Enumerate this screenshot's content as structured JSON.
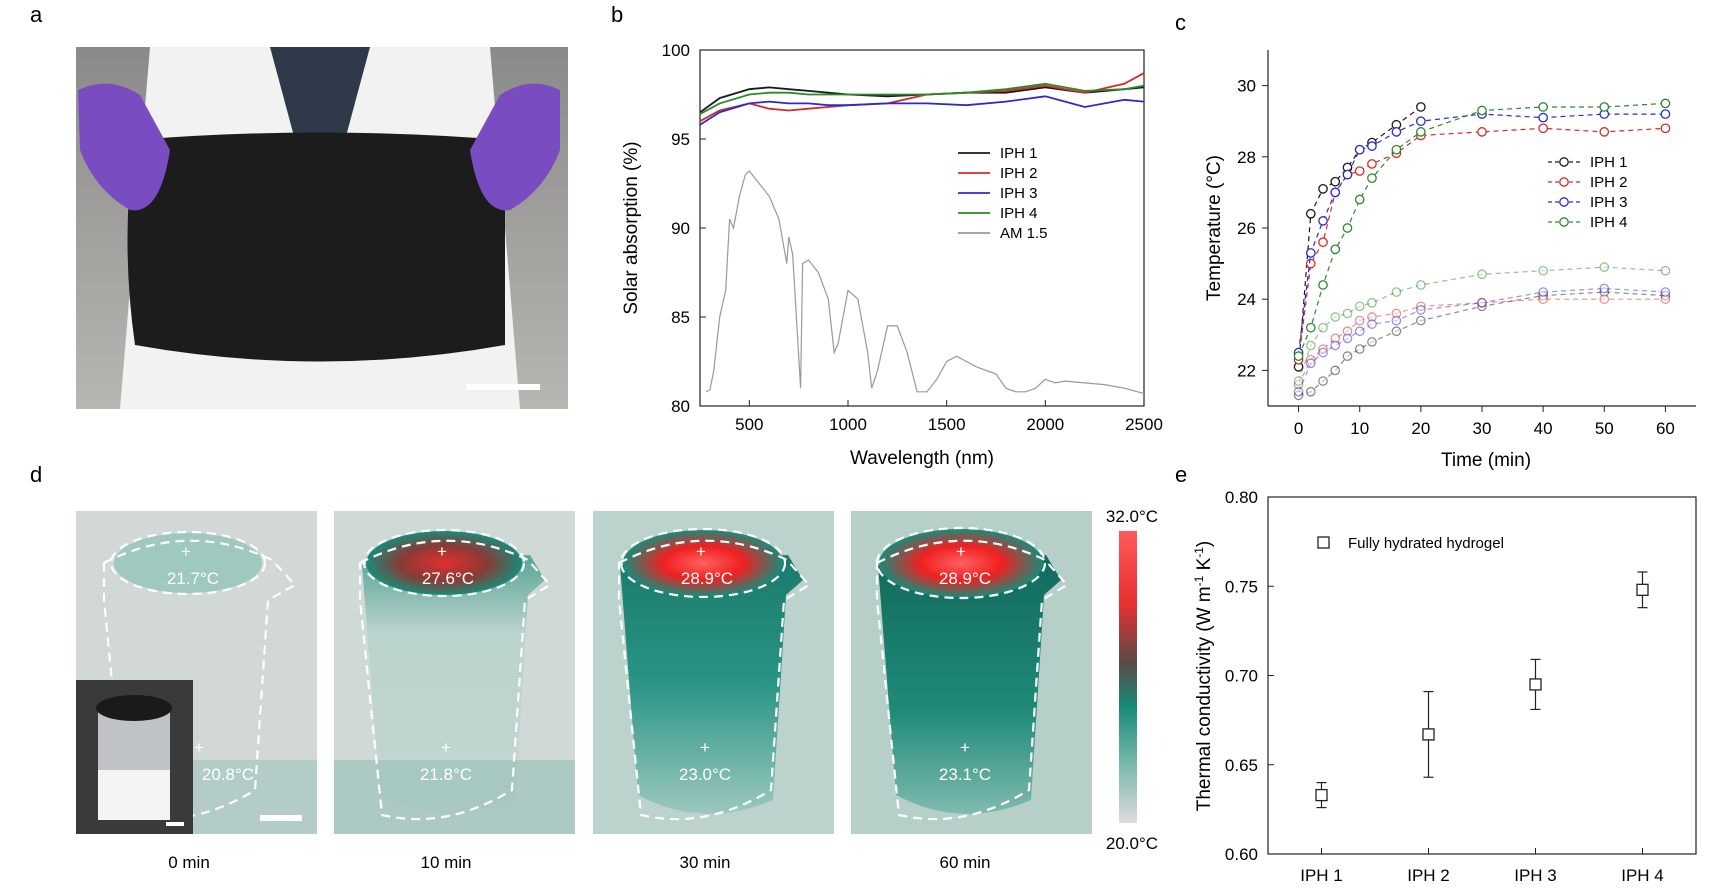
{
  "panels": {
    "a": {
      "label": "a"
    },
    "b": {
      "label": "b"
    },
    "c": {
      "label": "c"
    },
    "d": {
      "label": "d"
    },
    "e": {
      "label": "e"
    }
  },
  "colors": {
    "iph1": "#1a1a1a",
    "iph2": "#d62a2a",
    "iph3": "#2a2ad0",
    "iph4": "#2a8a2a",
    "am15": "#999999",
    "thermal_bg": "#c9d6d2",
    "teal": "#1a8a78",
    "hot": "#f02020"
  },
  "thermal": {
    "frames": [
      {
        "time": "0 min",
        "top_temp": "21.7°C",
        "bottom_temp": "20.8°C"
      },
      {
        "time": "10 min",
        "top_temp": "27.6°C",
        "bottom_temp": "21.8°C"
      },
      {
        "time": "30 min",
        "top_temp": "28.9°C",
        "bottom_temp": "23.0°C"
      },
      {
        "time": "60 min",
        "top_temp": "28.9°C",
        "bottom_temp": "23.1°C"
      }
    ],
    "colorbar_max": "32.0°C",
    "colorbar_min": "20.0°C"
  },
  "chart_data": [
    {
      "panel": "b",
      "type": "line",
      "xlabel": "Wavelength (nm)",
      "ylabel": "Solar absorption (%)",
      "xlim": [
        250,
        2500
      ],
      "ylim": [
        80,
        100
      ],
      "xticks": [
        500,
        1000,
        1500,
        2000,
        2500
      ],
      "yticks": [
        80,
        85,
        90,
        95,
        100
      ],
      "legend": [
        "IPH 1",
        "IPH 2",
        "IPH 3",
        "IPH 4",
        "AM 1.5"
      ],
      "series": [
        {
          "name": "IPH 1",
          "x": [
            250,
            350,
            500,
            600,
            700,
            800,
            900,
            1000,
            1200,
            1400,
            1600,
            1800,
            2000,
            2200,
            2400,
            2500
          ],
          "y": [
            96.5,
            97.3,
            97.8,
            97.9,
            97.8,
            97.7,
            97.6,
            97.5,
            97.4,
            97.5,
            97.6,
            97.6,
            97.9,
            97.6,
            97.8,
            97.9
          ]
        },
        {
          "name": "IPH 2",
          "x": [
            250,
            350,
            500,
            600,
            700,
            800,
            900,
            1000,
            1200,
            1400,
            1600,
            1800,
            2000,
            2200,
            2400,
            2500
          ],
          "y": [
            96.0,
            96.6,
            97.0,
            96.7,
            96.6,
            96.7,
            96.8,
            96.9,
            97.0,
            97.5,
            97.6,
            97.7,
            98.0,
            97.6,
            98.1,
            98.7
          ]
        },
        {
          "name": "IPH 3",
          "x": [
            250,
            350,
            500,
            600,
            700,
            800,
            900,
            1000,
            1200,
            1400,
            1600,
            1800,
            2000,
            2200,
            2400,
            2500
          ],
          "y": [
            95.8,
            96.5,
            97.0,
            97.1,
            97.0,
            97.0,
            96.9,
            96.9,
            97.0,
            97.0,
            96.9,
            97.1,
            97.4,
            96.8,
            97.2,
            97.1
          ]
        },
        {
          "name": "IPH 4",
          "x": [
            250,
            350,
            500,
            600,
            700,
            800,
            900,
            1000,
            1200,
            1400,
            1600,
            1800,
            2000,
            2200,
            2400,
            2500
          ],
          "y": [
            96.4,
            97.0,
            97.5,
            97.6,
            97.6,
            97.5,
            97.5,
            97.5,
            97.5,
            97.5,
            97.6,
            97.8,
            98.1,
            97.7,
            97.8,
            98.0
          ]
        },
        {
          "name": "AM 1.5",
          "x": [
            280,
            300,
            320,
            350,
            380,
            400,
            420,
            450,
            480,
            500,
            550,
            600,
            650,
            690,
            700,
            720,
            760,
            770,
            800,
            850,
            900,
            930,
            950,
            1000,
            1050,
            1100,
            1120,
            1150,
            1200,
            1250,
            1300,
            1350,
            1380,
            1400,
            1450,
            1500,
            1550,
            1600,
            1650,
            1700,
            1750,
            1800,
            1850,
            1900,
            1950,
            2000,
            2050,
            2100,
            2200,
            2300,
            2400,
            2500
          ],
          "y": [
            80.8,
            80.9,
            82.0,
            85.0,
            86.5,
            90.5,
            90.0,
            91.8,
            93.0,
            93.2,
            92.5,
            91.8,
            90.5,
            88.0,
            89.5,
            88.5,
            81.0,
            88.0,
            88.2,
            87.5,
            86.0,
            83.0,
            83.5,
            86.5,
            86.0,
            83.0,
            81.0,
            82.0,
            84.5,
            84.5,
            83.0,
            80.8,
            80.8,
            80.8,
            81.5,
            82.5,
            82.8,
            82.5,
            82.2,
            82.0,
            81.8,
            81.0,
            80.8,
            80.8,
            81.0,
            81.5,
            81.3,
            81.4,
            81.3,
            81.2,
            81.0,
            80.7
          ]
        }
      ]
    },
    {
      "panel": "c",
      "type": "line",
      "xlabel": "Time (min)",
      "ylabel": "Temperature (°C)",
      "xlim": [
        -5,
        65
      ],
      "ylim": [
        21,
        31
      ],
      "xticks": [
        0,
        10,
        20,
        30,
        40,
        50,
        60
      ],
      "yticks": [
        22,
        24,
        26,
        28,
        30
      ],
      "legend": [
        "IPH 1",
        "IPH 2",
        "IPH 3",
        "IPH 4"
      ],
      "series": [
        {
          "name": "IPH 1",
          "x": [
            0,
            2,
            4,
            6,
            8,
            10,
            12,
            16,
            20
          ],
          "y": [
            22.1,
            26.4,
            27.1,
            27.3,
            27.7,
            28.2,
            28.4,
            28.9,
            29.4
          ]
        },
        {
          "name": "IPH 2",
          "x": [
            0,
            2,
            4,
            6,
            8,
            10,
            12,
            16,
            20,
            30,
            40,
            50,
            60
          ],
          "y": [
            22.3,
            25.0,
            25.6,
            27.0,
            27.5,
            27.6,
            27.8,
            28.1,
            28.6,
            28.7,
            28.8,
            28.7,
            28.8
          ]
        },
        {
          "name": "IPH 3",
          "x": [
            0,
            2,
            4,
            6,
            8,
            10,
            12,
            16,
            20,
            30,
            40,
            50,
            60
          ],
          "y": [
            22.5,
            25.3,
            26.2,
            27.0,
            27.5,
            28.2,
            28.3,
            28.7,
            29.0,
            29.2,
            29.1,
            29.2,
            29.2
          ]
        },
        {
          "name": "IPH 4",
          "x": [
            0,
            2,
            4,
            6,
            8,
            10,
            12,
            16,
            20,
            30,
            40,
            50,
            60
          ],
          "y": [
            22.4,
            23.2,
            24.4,
            25.4,
            26.0,
            26.8,
            27.4,
            28.2,
            28.7,
            29.3,
            29.4,
            29.4,
            29.5
          ]
        },
        {
          "name": "IPH 1 (lower)",
          "x": [
            0,
            2,
            4,
            6,
            8,
            10,
            12,
            16,
            20,
            30,
            40,
            50,
            60
          ],
          "y": [
            21.3,
            21.4,
            21.7,
            22.0,
            22.4,
            22.6,
            22.8,
            23.1,
            23.4,
            23.8,
            24.1,
            24.2,
            24.1
          ]
        },
        {
          "name": "IPH 2 (lower)",
          "x": [
            0,
            2,
            4,
            6,
            8,
            10,
            12,
            16,
            20,
            30,
            40,
            50,
            60
          ],
          "y": [
            21.6,
            22.3,
            22.6,
            22.9,
            23.1,
            23.4,
            23.5,
            23.6,
            23.8,
            23.9,
            24.0,
            24.0,
            24.0
          ]
        },
        {
          "name": "IPH 3 (lower)",
          "x": [
            0,
            2,
            4,
            6,
            8,
            10,
            12,
            16,
            20,
            30,
            40,
            50,
            60
          ],
          "y": [
            21.4,
            22.2,
            22.5,
            22.7,
            22.9,
            23.1,
            23.3,
            23.4,
            23.7,
            23.9,
            24.2,
            24.3,
            24.2
          ]
        },
        {
          "name": "IPH 4 (lower)",
          "x": [
            0,
            2,
            4,
            6,
            8,
            10,
            12,
            16,
            20,
            30,
            40,
            50,
            60
          ],
          "y": [
            21.7,
            22.7,
            23.2,
            23.5,
            23.6,
            23.8,
            23.9,
            24.2,
            24.4,
            24.7,
            24.8,
            24.9,
            24.8
          ]
        }
      ]
    },
    {
      "panel": "e",
      "type": "scatter",
      "xlabel": "",
      "ylabel": "Thermal conductivity (W m-1 K-1)",
      "ylabel_parts": {
        "base": "Thermal conductivity (W m",
        "sup1": "-1",
        "mid": " K",
        "sup2": "-1",
        "end": ")"
      },
      "categories": [
        "IPH 1",
        "IPH 2",
        "IPH 3",
        "IPH 4"
      ],
      "values": [
        0.633,
        0.667,
        0.695,
        0.748
      ],
      "errors": [
        0.007,
        0.024,
        0.014,
        0.01
      ],
      "ylim": [
        0.6,
        0.8
      ],
      "yticks": [
        "0.60",
        "0.65",
        "0.70",
        "0.75",
        "0.80"
      ],
      "legend": [
        "Fully hydrated hydrogel"
      ]
    }
  ]
}
